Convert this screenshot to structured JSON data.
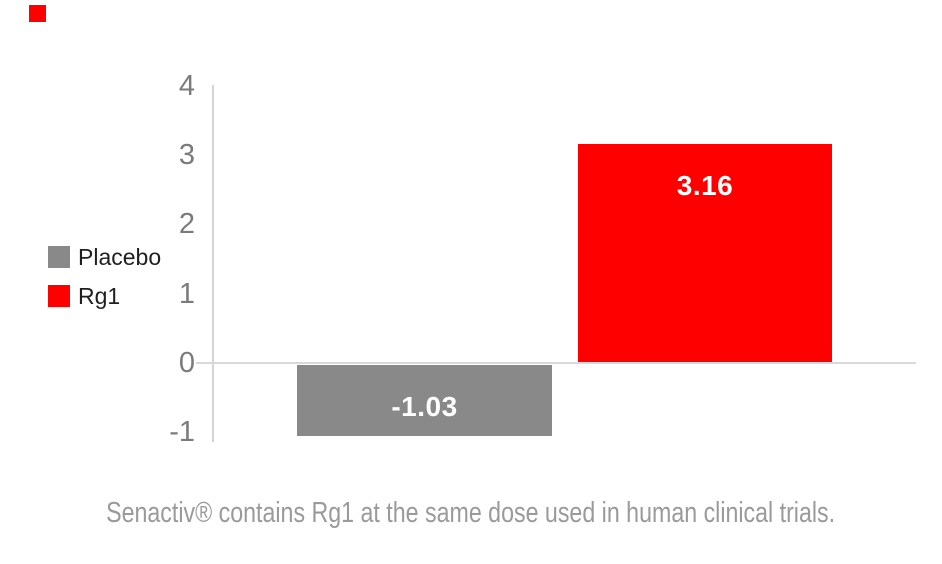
{
  "page": {
    "background": "#ffffff"
  },
  "brand": {
    "accent_color": "#fe0000"
  },
  "legend": {
    "items": [
      {
        "label": "Placebo",
        "color": "#898989"
      },
      {
        "label": "Rg1",
        "color": "#fe0000"
      }
    ]
  },
  "caption": {
    "text": "Senactiv® contains Rg1 at the same dose used in human clinical trials."
  },
  "chart_data": {
    "type": "bar",
    "categories": [
      "Placebo",
      "Rg1"
    ],
    "values": [
      -1.03,
      3.16
    ],
    "bar_labels": [
      "-1.03",
      "3.16"
    ],
    "colors": [
      "#898989",
      "#fe0000"
    ],
    "value_label_color": "#ffffff",
    "title": "",
    "xlabel": "",
    "ylabel": "",
    "ylim": [
      -1,
      4
    ],
    "yticks": [
      4,
      3,
      2,
      1,
      0,
      -1
    ],
    "grid": "zero-baseline-only",
    "axis_color": "#d4d4d4",
    "tick_label_color": "#7b7b7b",
    "legend_position": "left-middle"
  }
}
